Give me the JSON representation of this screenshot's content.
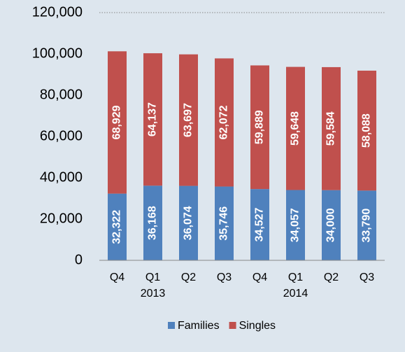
{
  "chart_data": {
    "type": "stacked_bar",
    "categories": [
      "Q4",
      "Q1",
      "Q2",
      "Q3",
      "Q4",
      "Q1",
      "Q2",
      "Q3"
    ],
    "category_groups": [
      null,
      "2013",
      null,
      null,
      null,
      "2014",
      null,
      null
    ],
    "series": [
      {
        "name": "Families",
        "color": "#4f81bd",
        "values": [
          32322,
          36168,
          36074,
          35746,
          34527,
          34057,
          34000,
          33790
        ],
        "value_labels": [
          "32,322",
          "36,168",
          "36,074",
          "35,746",
          "34,527",
          "34,057",
          "34,000",
          "33,790"
        ]
      },
      {
        "name": "Singles",
        "color": "#c0504d",
        "values": [
          68929,
          64137,
          63697,
          62072,
          59889,
          59648,
          59584,
          58088
        ],
        "value_labels": [
          "68,929",
          "64,137",
          "63,697",
          "62,072",
          "59,889",
          "59,648",
          "59,584",
          "58,088"
        ]
      }
    ],
    "ylim": [
      0,
      120000
    ],
    "yticks": [
      0,
      {
        "value": 20000,
        "label": "20,000"
      },
      {
        "value": 40000,
        "label": "40,000"
      },
      {
        "value": 60000,
        "label": "60,000"
      },
      {
        "value": 80000,
        "label": "80,000"
      },
      {
        "value": 100000,
        "label": "100,000"
      },
      {
        "value": 120000,
        "label": "120,000"
      }
    ],
    "grid": false,
    "legend": "bottom"
  }
}
